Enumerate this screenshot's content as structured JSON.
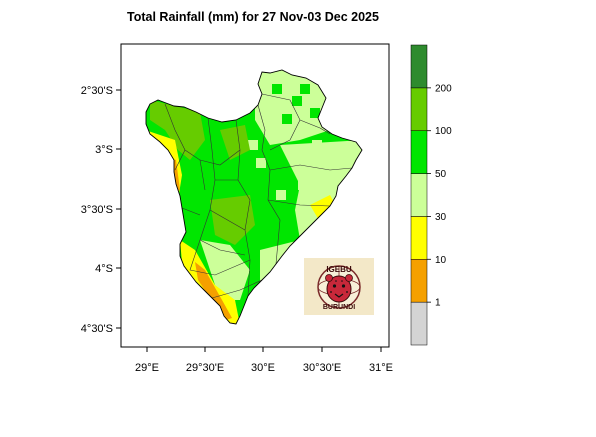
{
  "title": "Total Rainfall (mm) for 27 Nov-03 Dec 2025",
  "map": {
    "x_ticks": [
      "29°E",
      "29°30'E",
      "30°E",
      "30°30'E",
      "31°E"
    ],
    "y_ticks": [
      "2°30'S",
      "3°S",
      "3°30'S",
      "4°S",
      "4°30'S"
    ]
  },
  "colorbar": {
    "labels": [
      "1",
      "10",
      "30",
      "50",
      "100",
      "200"
    ],
    "colors": [
      "#d4d4d4",
      "#f5a000",
      "#ffff00",
      "#ccff99",
      "#00e600",
      "#66cc00",
      "#2e8b2e"
    ]
  },
  "logo": {
    "text_top": "IGEBU",
    "text_bottom": "BURUNDI",
    "emblem": "leopard-head-icon"
  }
}
